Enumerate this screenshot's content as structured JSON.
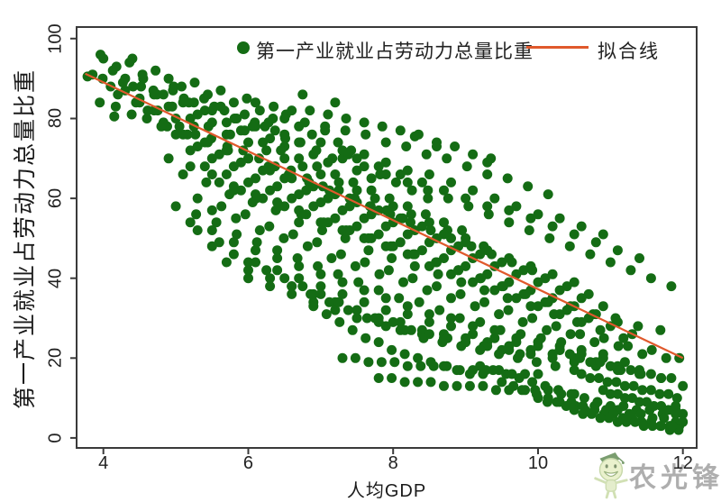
{
  "legend": {
    "series_label": "第一产业就业占劳动力总量比重",
    "fit_label": "拟合线"
  },
  "axes": {
    "x_title": "人均GDP",
    "y_title": "第一产业就业占劳动力总量比重"
  },
  "watermark": {
    "text": "农光锋"
  },
  "colors": {
    "dot": "#146c14",
    "fit_line": "#e0592c",
    "frame": "#3a3a3a",
    "text": "#222222",
    "watermark_text": "#9a9a9a"
  },
  "chart_data": {
    "type": "scatter",
    "title": "",
    "xlabel": "人均GDP",
    "ylabel": "第一产业就业占劳动力总量比重",
    "xlim": [
      3.63,
      12.19
    ],
    "ylim": [
      -2.5,
      102.9
    ],
    "x_ticks": [
      4,
      6,
      8,
      10,
      12
    ],
    "y_ticks": [
      0,
      20,
      40,
      60,
      80,
      100
    ],
    "grid": false,
    "legend_position": "top-inside",
    "fit_line": {
      "label": "拟合线",
      "x": [
        3.75,
        12.0
      ],
      "y": [
        91.2,
        20.0
      ]
    },
    "series_label": "第一产业就业占劳动力总量比重",
    "trajectories": [
      {
        "x0": 3.85,
        "dx": 0.14,
        "y": [
          91,
          90,
          92,
          89,
          88,
          90,
          87,
          86,
          88,
          85,
          84,
          85,
          83,
          82,
          80,
          81,
          79,
          78,
          77,
          75
        ]
      },
      {
        "x0": 4.0,
        "dx": 0.18,
        "y": [
          95,
          93,
          94,
          91,
          92,
          90,
          88,
          89,
          86,
          87,
          84,
          85,
          82,
          80,
          81,
          78,
          76,
          77,
          74,
          72
        ]
      },
      {
        "x0": 4.1,
        "dx": 0.2,
        "y": [
          88,
          87,
          85,
          86,
          83,
          84,
          81,
          82,
          79,
          77,
          78,
          75,
          73,
          74,
          71,
          69,
          70,
          67,
          65,
          66
        ]
      },
      {
        "x0": 4.3,
        "dx": 0.22,
        "y": [
          90,
          88,
          86,
          87,
          84,
          82,
          83,
          80,
          78,
          79,
          76,
          74,
          72,
          70,
          71,
          68,
          66,
          64,
          62,
          60
        ]
      },
      {
        "x0": 4.2,
        "dx": 0.25,
        "y": [
          86,
          84,
          82,
          83,
          80,
          78,
          76,
          77,
          74,
          72,
          70,
          68,
          66,
          64,
          62,
          60,
          58,
          56,
          54,
          52
        ]
      },
      {
        "x0": 4.5,
        "dx": 0.25,
        "y": [
          84,
          82,
          80,
          78,
          79,
          76,
          74,
          72,
          70,
          68,
          66,
          64,
          62,
          60,
          58,
          56,
          54,
          52,
          50,
          48
        ]
      },
      {
        "x0": 4.6,
        "dx": 0.28,
        "y": [
          80,
          78,
          76,
          74,
          72,
          70,
          68,
          66,
          64,
          62,
          60,
          58,
          56,
          54,
          52,
          50,
          48,
          46,
          44,
          42
        ]
      },
      {
        "x0": 4.8,
        "dx": 0.3,
        "y": [
          78,
          76,
          74,
          72,
          70,
          67,
          65,
          63,
          61,
          59,
          57,
          55,
          53,
          51,
          49,
          47,
          45,
          43,
          41,
          39
        ]
      },
      {
        "x0": 5.0,
        "dx": 0.3,
        "y": [
          76,
          73,
          71,
          69,
          67,
          65,
          62,
          60,
          58,
          56,
          54,
          52,
          50,
          48,
          46,
          44,
          42,
          40,
          38,
          36
        ]
      },
      {
        "x0": 5.2,
        "dx": 0.3,
        "y": [
          72,
          70,
          68,
          65,
          63,
          61,
          59,
          57,
          55,
          53,
          51,
          49,
          47,
          45,
          43,
          41,
          39,
          37,
          35,
          33
        ]
      },
      {
        "x0": 5.4,
        "dx": 0.3,
        "y": [
          68,
          66,
          64,
          62,
          60,
          58,
          55,
          53,
          51,
          49,
          47,
          45,
          43,
          41,
          39,
          37,
          35,
          33,
          31,
          29
        ]
      },
      {
        "x0": 5.6,
        "dx": 0.3,
        "y": [
          64,
          62,
          60,
          58,
          56,
          54,
          52,
          50,
          48,
          46,
          44,
          42,
          40,
          38,
          36,
          34,
          32,
          30,
          28,
          26
        ]
      },
      {
        "x0": 4.9,
        "dx": 0.3,
        "y": [
          70,
          68,
          66,
          63,
          61,
          59,
          57,
          54,
          52,
          50,
          48,
          46,
          43,
          41,
          39,
          37,
          35,
          33,
          31,
          29
        ]
      },
      {
        "x0": 5.1,
        "dx": 0.32,
        "y": [
          66,
          64,
          61,
          59,
          57,
          54,
          52,
          50,
          47,
          45,
          43,
          41,
          39,
          37,
          35,
          33,
          31,
          29,
          27,
          25
        ]
      },
      {
        "x0": 5.3,
        "dx": 0.33,
        "y": [
          60,
          58,
          56,
          53,
          51,
          49,
          46,
          44,
          42,
          40,
          38,
          36,
          34,
          32,
          30,
          28,
          26,
          25,
          23,
          22
        ]
      },
      {
        "x0": 5.5,
        "dx": 0.33,
        "y": [
          57,
          55,
          52,
          50,
          48,
          45,
          43,
          41,
          39,
          37,
          35,
          33,
          31,
          29,
          27,
          26,
          24,
          23,
          21,
          20
        ]
      },
      {
        "x0": 5.8,
        "dx": 0.31,
        "y": [
          62,
          60,
          58,
          56,
          54,
          52,
          50,
          48,
          46,
          44,
          42,
          40,
          38,
          36,
          34,
          33,
          31,
          30,
          28,
          27
        ]
      },
      {
        "x0": 3.95,
        "dx": 0.22,
        "y": [
          84,
          83,
          81,
          82,
          79,
          78,
          76,
          75,
          73,
          72,
          70,
          68,
          67,
          65,
          63,
          62,
          60,
          58,
          57,
          55
        ]
      },
      {
        "x0": 5.0,
        "dx": 0.28,
        "y": [
          58,
          56,
          54,
          51,
          49,
          47,
          45,
          43,
          41,
          39,
          37,
          35,
          34,
          32,
          30,
          29,
          27,
          26,
          25,
          24
        ]
      },
      {
        "x0": 5.2,
        "dx": 0.3,
        "y": [
          54,
          52,
          49,
          47,
          45,
          43,
          41,
          39,
          37,
          35,
          33,
          31,
          30,
          28,
          27,
          25,
          24,
          23,
          22,
          21
        ]
      },
      {
        "x0": 5.5,
        "dx": 0.3,
        "y": [
          48,
          46,
          44,
          42,
          40,
          38,
          36,
          34,
          32,
          31,
          29,
          28,
          26,
          25,
          24,
          23,
          22,
          21,
          20,
          19
        ]
      },
      {
        "x0": 5.7,
        "dx": 0.3,
        "y": [
          44,
          42,
          40,
          38,
          36,
          34,
          32,
          30,
          29,
          27,
          26,
          25,
          24,
          23,
          22,
          21,
          20,
          19,
          18,
          17
        ]
      },
      {
        "x0": 6.0,
        "dx": 0.3,
        "y": [
          40,
          38,
          36,
          34,
          32,
          30,
          29,
          27,
          26,
          25,
          24,
          23,
          22,
          21,
          20,
          19,
          18,
          17,
          16,
          15
        ]
      },
      {
        "x0": 6.0,
        "dx": 0.25,
        "y": [
          44,
          42,
          40,
          38,
          36,
          34,
          32,
          30,
          29,
          27,
          26,
          25,
          24,
          23,
          22,
          21
        ]
      },
      {
        "x0": 6.6,
        "dx": 0.26,
        "y": [
          38,
          36,
          34,
          32,
          30,
          28,
          27,
          25,
          24,
          23,
          22,
          21,
          20,
          19,
          18,
          17
        ]
      },
      {
        "x0": 7.3,
        "dx": 0.18,
        "y": [
          20,
          20,
          19,
          19,
          19,
          18,
          18,
          18,
          18,
          17,
          17,
          17,
          17,
          16,
          16,
          16
        ]
      },
      {
        "x0": 7.8,
        "dx": 0.18,
        "y": [
          15,
          15,
          14,
          14,
          14,
          13,
          13,
          13,
          13,
          12,
          12,
          12,
          12,
          12,
          11,
          11
        ]
      },
      {
        "x0": 9.2,
        "dx": 0.18,
        "y": [
          18,
          17,
          16,
          15,
          14,
          13,
          12,
          11,
          10,
          9,
          8,
          8,
          7,
          7,
          6,
          6
        ]
      },
      {
        "x0": 9.5,
        "dx": 0.16,
        "y": [
          14,
          13,
          12,
          11,
          10,
          9,
          9,
          8,
          8,
          7,
          7,
          6,
          6,
          5,
          5,
          4
        ]
      },
      {
        "x0": 10.0,
        "dx": 0.13,
        "y": [
          10,
          9,
          9,
          8,
          8,
          7,
          7,
          6,
          6,
          5,
          5,
          4,
          4,
          3,
          3,
          3
        ]
      },
      {
        "x0": 10.5,
        "dx": 0.12,
        "y": [
          7,
          6,
          6,
          5,
          5,
          4,
          4,
          4,
          3,
          3,
          3,
          2,
          2
        ]
      },
      {
        "x0": 10.6,
        "dx": 0.12,
        "y": [
          16,
          15,
          15,
          14,
          14,
          13,
          13,
          12,
          12,
          11,
          11,
          10
        ]
      },
      {
        "x0": 10.3,
        "dx": 0.14,
        "y": [
          22,
          21,
          20,
          19,
          19,
          18,
          17,
          17,
          16,
          16,
          15,
          15
        ]
      },
      {
        "x0": 6.9,
        "dx": 0.18,
        "y": [
          33,
          31,
          29,
          27,
          25,
          24,
          22,
          21,
          20,
          19,
          18,
          17,
          16,
          16
        ]
      },
      {
        "x0": 10.9,
        "dx": 0.1,
        "y": [
          12,
          11,
          11,
          10,
          10,
          9,
          9,
          8,
          8,
          7,
          7,
          6
        ]
      },
      {
        "x0": 6.1,
        "dx": 0.25,
        "y": [
          84,
          83,
          82,
          82,
          81,
          80,
          79,
          78,
          77,
          76,
          74,
          73,
          71,
          70
        ]
      },
      {
        "x0": 6.5,
        "dx": 0.28,
        "y": [
          80,
          79,
          78,
          77,
          76,
          74,
          73,
          71,
          70,
          68,
          66,
          65,
          63,
          61
        ]
      },
      {
        "x0": 7.0,
        "dx": 0.3,
        "y": [
          74,
          72,
          71,
          69,
          67,
          66,
          64,
          62,
          60,
          58,
          56,
          55,
          53,
          51
        ]
      },
      {
        "x0": 7.5,
        "dx": 0.3,
        "y": [
          70,
          68,
          66,
          64,
          62,
          60,
          58,
          57,
          55,
          53,
          51,
          49,
          47,
          45
        ]
      },
      {
        "x0": 8.2,
        "dx": 0.28,
        "y": [
          64,
          62,
          60,
          58,
          56,
          54,
          52,
          50,
          48,
          46,
          44,
          42,
          40,
          38
        ]
      }
    ],
    "extra_points": [
      [
        3.78,
        90.5
      ],
      [
        3.96,
        96
      ],
      [
        4.4,
        95
      ],
      [
        4.15,
        80.5
      ],
      [
        8.3,
        75.5
      ],
      [
        8.6,
        73
      ],
      [
        9.3,
        69
      ],
      [
        6.75,
        86
      ],
      [
        7.2,
        84
      ],
      [
        11.95,
        20
      ],
      [
        12.0,
        13
      ],
      [
        11.9,
        8
      ],
      [
        12.0,
        4
      ],
      [
        11.85,
        3
      ],
      [
        5.3,
        52
      ],
      [
        5.6,
        49
      ]
    ]
  }
}
